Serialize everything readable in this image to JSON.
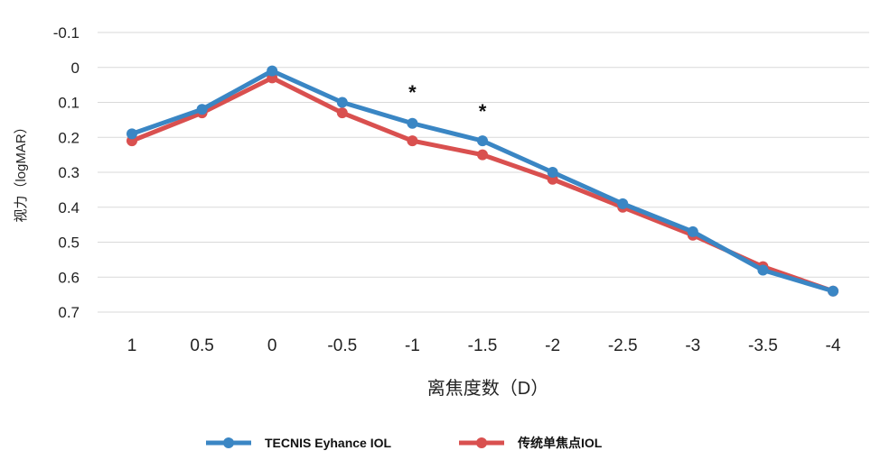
{
  "chart_data": {
    "type": "line",
    "title": "",
    "xlabel": "离焦度数（D）",
    "ylabel": "视力（logMAR）",
    "categories": [
      "1",
      "0.5",
      "0",
      "-0.5",
      "-1",
      "-1.5",
      "-2",
      "-2.5",
      "-3",
      "-3.5",
      "-4"
    ],
    "y_ticks": [
      "-0.1",
      "0",
      "0.1",
      "0.2",
      "0.3",
      "0.4",
      "0.5",
      "0.6",
      "0.7"
    ],
    "ylim": [
      -0.1,
      0.7
    ],
    "y_inverted": true,
    "grid": true,
    "legend_position": "bottom",
    "series": [
      {
        "name": "TECNIS Eyhance IOL",
        "color": "#3a86c4",
        "values": [
          0.19,
          0.12,
          0.01,
          0.1,
          0.16,
          0.21,
          0.3,
          0.39,
          0.47,
          0.58,
          0.64
        ]
      },
      {
        "name": "传统单焦点IOL",
        "color": "#d9504f",
        "values": [
          0.21,
          0.13,
          0.03,
          0.13,
          0.21,
          0.25,
          0.32,
          0.4,
          0.48,
          0.57,
          0.64
        ]
      }
    ],
    "annotations": [
      {
        "category": "-1",
        "text": "*"
      },
      {
        "category": "-1.5",
        "text": "*"
      }
    ]
  }
}
